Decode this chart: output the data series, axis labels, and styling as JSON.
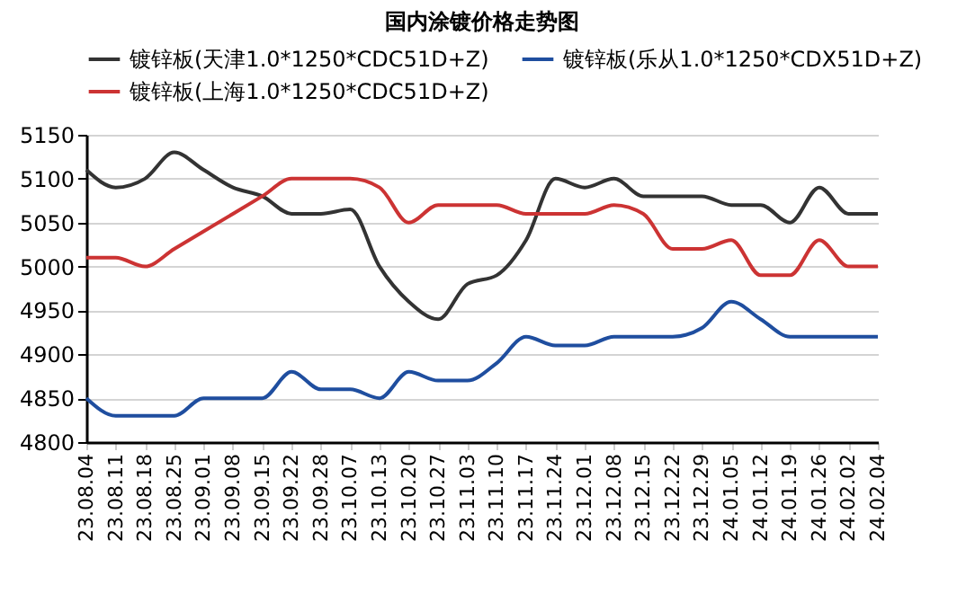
{
  "chart_data": {
    "type": "line",
    "title": "国内涂镀价格走势图",
    "categories": [
      "23.08.04",
      "23.08.11",
      "23.08.18",
      "23.08.25",
      "23.09.01",
      "23.09.08",
      "23.09.15",
      "23.09.22",
      "23.09.28",
      "23.10.07",
      "23.10.13",
      "23.10.20",
      "23.10.27",
      "23.11.03",
      "23.11.10",
      "23.11.17",
      "23.11.24",
      "23.12.01",
      "23.12.08",
      "23.12.15",
      "23.12.22",
      "23.12.29",
      "24.01.05",
      "24.01.12",
      "24.01.19",
      "24.01.26",
      "24.02.02",
      "24.02.04"
    ],
    "series": [
      {
        "name": "镀锌板(天津1.0*1250*CDC51D+Z)",
        "color": "#333333",
        "values": [
          5110,
          5090,
          5100,
          5130,
          5110,
          5090,
          5080,
          5060,
          5060,
          5065,
          5000,
          4960,
          4940,
          4980,
          4990,
          5030,
          5100,
          5090,
          5100,
          5080,
          5080,
          5080,
          5070,
          5070,
          5050,
          5090,
          5060,
          5060
        ]
      },
      {
        "name": "镀锌板(乐从1.0*1250*CDX51D+Z)",
        "color": "#1f4e9f",
        "values": [
          4850,
          4830,
          4830,
          4830,
          4850,
          4850,
          4850,
          4880,
          4860,
          4860,
          4850,
          4880,
          4870,
          4870,
          4890,
          4920,
          4910,
          4910,
          4920,
          4920,
          4920,
          4930,
          4960,
          4940,
          4920,
          4920,
          4920,
          4920
        ]
      },
      {
        "name": "镀锌板(上海1.0*1250*CDC51D+Z)",
        "color": "#cc3333",
        "values": [
          5010,
          5010,
          5000,
          5020,
          5040,
          5060,
          5080,
          5100,
          5100,
          5100,
          5090,
          5050,
          5070,
          5070,
          5070,
          5060,
          5060,
          5060,
          5070,
          5060,
          5020,
          5020,
          5030,
          4990,
          4990,
          5030,
          5000,
          5000
        ]
      }
    ],
    "ylim": [
      4800,
      5150
    ],
    "yticks": [
      4800,
      4850,
      4900,
      4950,
      5000,
      5050,
      5100,
      5150
    ],
    "grid": "y",
    "legend": "top left"
  }
}
